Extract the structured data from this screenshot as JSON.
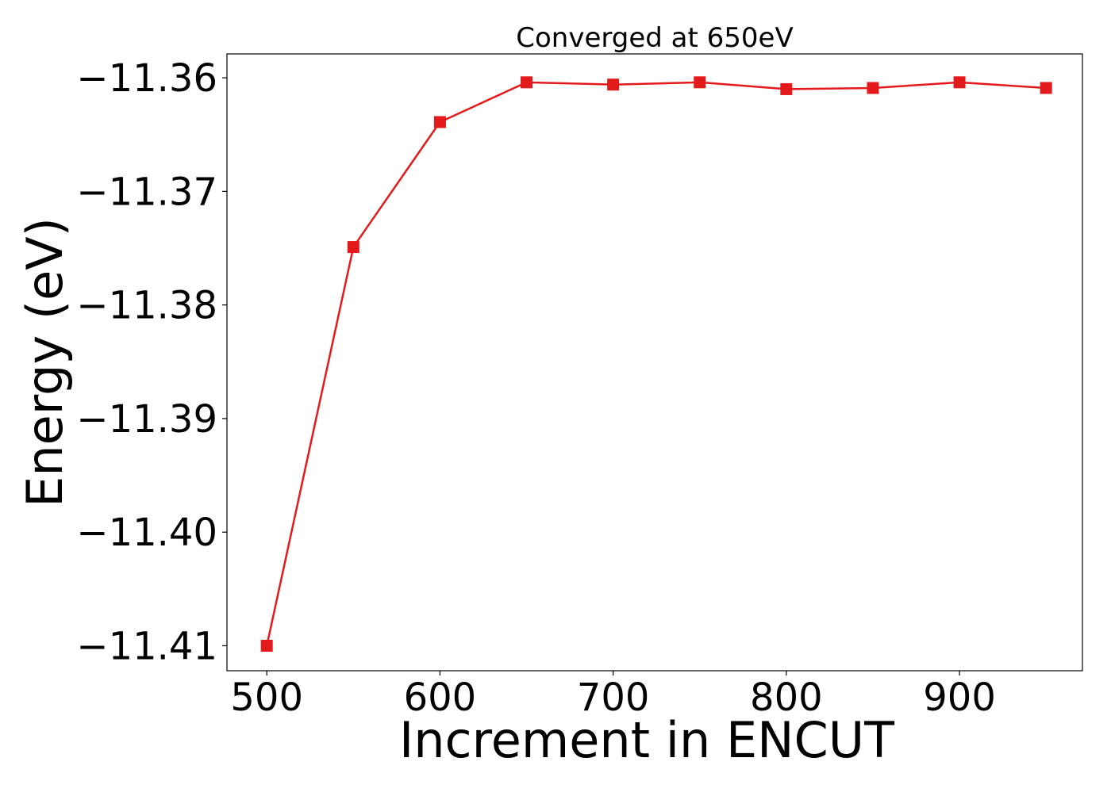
{
  "chart_data": {
    "type": "line",
    "title": "Converged at 650eV",
    "xlabel": "Increment in ENCUT",
    "ylabel": "Energy (eV)",
    "xlim": [
      477,
      971
    ],
    "ylim": [
      -11.4122,
      -11.3579
    ],
    "x_ticks": [
      500,
      600,
      700,
      800,
      900
    ],
    "x_tick_labels": [
      "500",
      "600",
      "700",
      "800",
      "900"
    ],
    "y_ticks": [
      -11.36,
      -11.37,
      -11.38,
      -11.39,
      -11.4,
      -11.41
    ],
    "y_tick_labels": [
      "−11.36",
      "−11.37",
      "−11.38",
      "−11.39",
      "−11.40",
      "−11.41"
    ],
    "grid": false,
    "series": [
      {
        "color": "#e31a1c",
        "marker": "square",
        "x": [
          500,
          550,
          600,
          650,
          700,
          750,
          800,
          850,
          900,
          950
        ],
        "y": [
          -11.41,
          -11.3749,
          -11.3639,
          -11.3604,
          -11.3606,
          -11.3604,
          -11.361,
          -11.3609,
          -11.3604,
          -11.3609
        ]
      }
    ]
  }
}
